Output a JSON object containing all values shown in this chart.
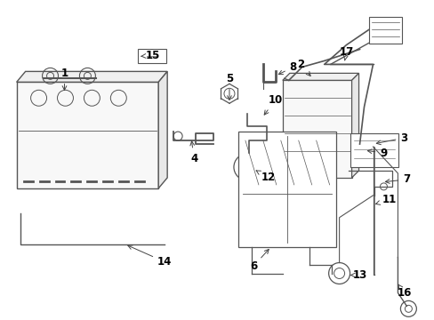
{
  "background_color": "#ffffff",
  "line_color": "#555555",
  "label_color": "#000000",
  "fig_w": 4.89,
  "fig_h": 3.6,
  "dpi": 100
}
